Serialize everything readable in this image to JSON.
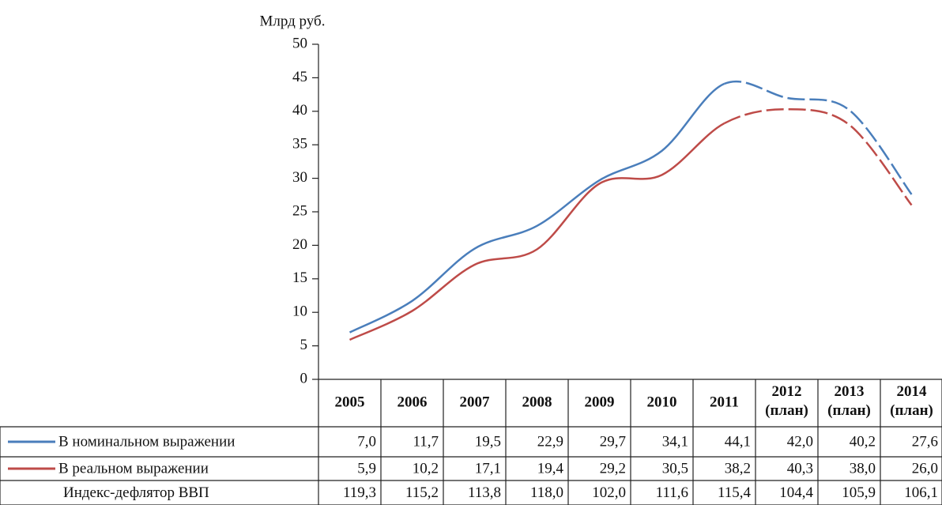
{
  "chart_data": {
    "type": "line",
    "y_axis_label": "Млрд руб.",
    "categories": [
      "2005",
      "2006",
      "2007",
      "2008",
      "2009",
      "2010",
      "2011",
      "2012 (план)",
      "2013 (план)",
      "2014 (план)"
    ],
    "dashed_after": "2011",
    "ylim": [
      0,
      50
    ],
    "yticks": [
      0,
      5,
      10,
      15,
      20,
      25,
      30,
      35,
      40,
      45,
      50
    ],
    "series": [
      {
        "name": "В номинальном выражении",
        "color": "#4a7ebb",
        "values": [
          7.0,
          11.7,
          19.5,
          22.9,
          29.7,
          34.1,
          44.1,
          42.0,
          40.2,
          27.6
        ],
        "value_labels": [
          "7,0",
          "11,7",
          "19,5",
          "22,9",
          "29,7",
          "34,1",
          "44,1",
          "42,0",
          "40,2",
          "27,6"
        ]
      },
      {
        "name": "В реальном выражении",
        "color": "#be4b48",
        "values": [
          5.9,
          10.2,
          17.1,
          19.4,
          29.2,
          30.5,
          38.2,
          40.3,
          38.0,
          26.0
        ],
        "value_labels": [
          "5,9",
          "10,2",
          "17,1",
          "19,4",
          "29,2",
          "30,5",
          "38,2",
          "40,3",
          "38,0",
          "26,0"
        ]
      }
    ],
    "extra_rows": [
      {
        "name": "Индекс-дефлятор ВВП",
        "values": [
          119.3,
          115.2,
          113.8,
          118.0,
          102.0,
          111.6,
          115.4,
          104.4,
          105.9,
          106.1
        ],
        "value_labels": [
          "119,3",
          "115,2",
          "113,8",
          "118,0",
          "102,0",
          "111,6",
          "115,4",
          "104,4",
          "105,9",
          "106,1"
        ]
      }
    ]
  }
}
